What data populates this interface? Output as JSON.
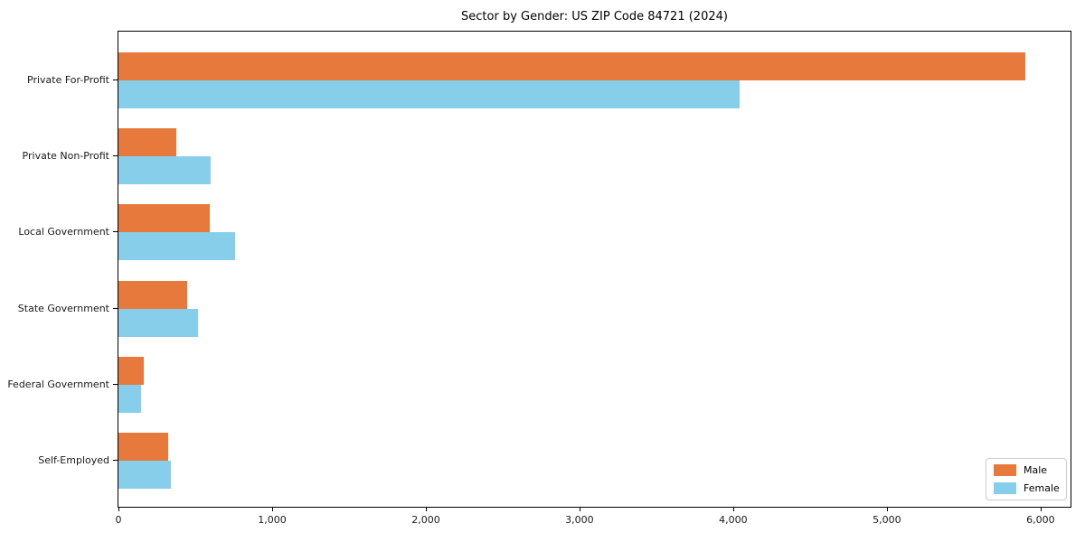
{
  "chart_data": {
    "type": "bar",
    "orientation": "horizontal",
    "title": "Sector by Gender: US ZIP Code 84721 (2024)",
    "categories": [
      "Private For-Profit",
      "Private Non-Profit",
      "Local Government",
      "State Government",
      "Federal Government",
      "Self-Employed"
    ],
    "series": [
      {
        "name": "Male",
        "color": "#e8793d",
        "values": [
          5900,
          375,
          595,
          445,
          165,
          325
        ]
      },
      {
        "name": "Female",
        "color": "#87ceeb",
        "values": [
          4040,
          600,
          760,
          520,
          145,
          340
        ]
      }
    ],
    "xlabel": "",
    "ylabel": "",
    "xlim": [
      0,
      6195
    ],
    "xticks": [
      0,
      1000,
      2000,
      3000,
      4000,
      5000,
      6000
    ],
    "xtick_labels": [
      "0",
      "1,000",
      "2,000",
      "3,000",
      "4,000",
      "5,000",
      "6,000"
    ],
    "grid": false,
    "legend": {
      "position": "lower right",
      "entries": [
        "Male",
        "Female"
      ]
    }
  }
}
